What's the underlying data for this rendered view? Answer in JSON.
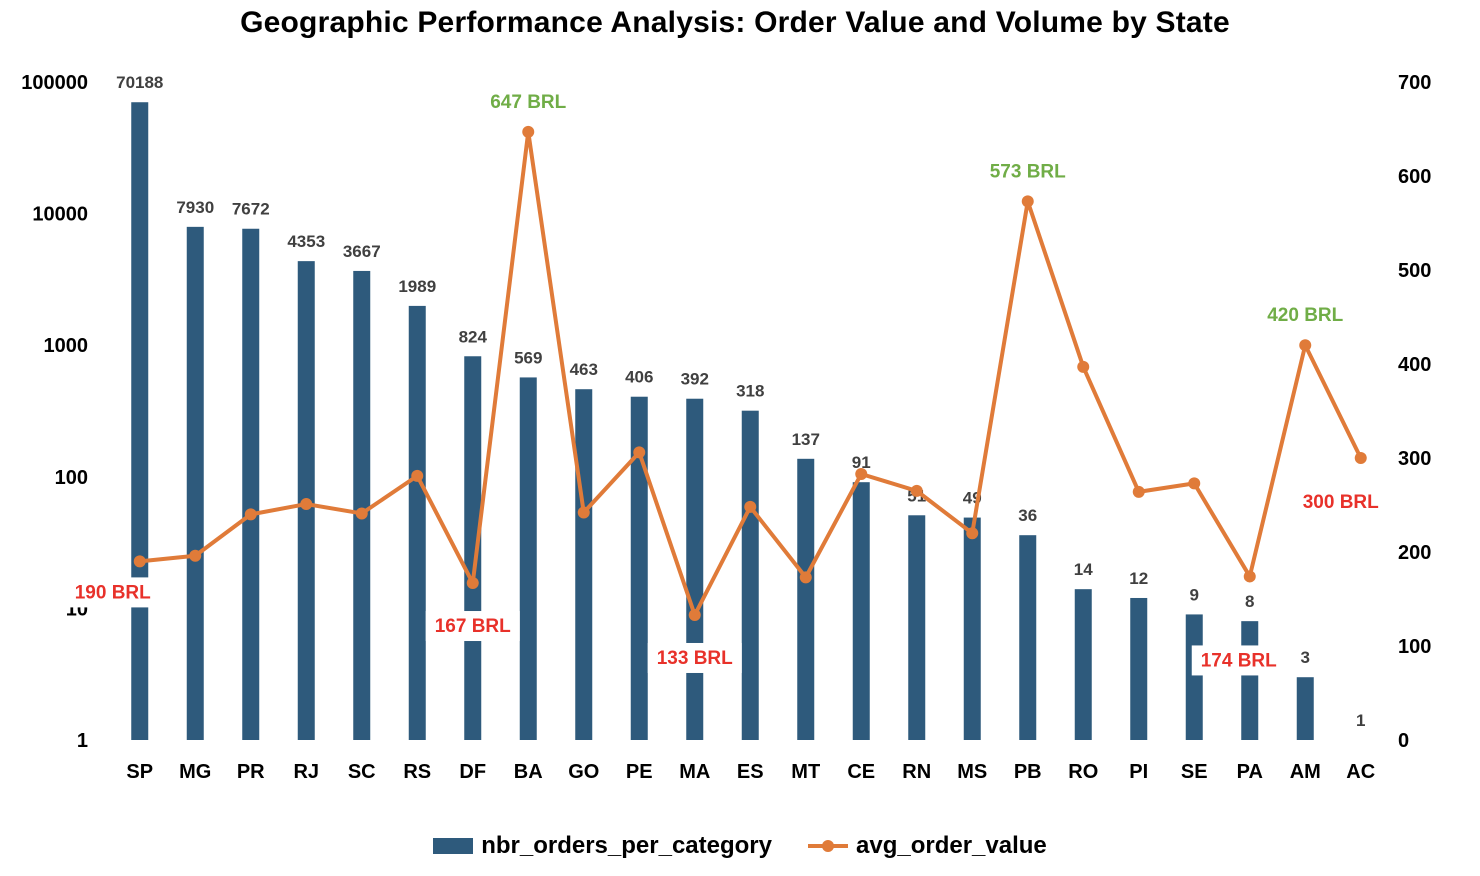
{
  "title": "Geographic Performance Analysis: Order Value and Volume by State",
  "colors": {
    "bar": "#2E5A7C",
    "line": "#E07B39",
    "high_label": "#70AD47",
    "low_label": "#E8312A"
  },
  "legend": {
    "bar_label": "nbr_orders_per_category",
    "line_label": "avg_order_value"
  },
  "chart_data": {
    "type": "bar",
    "title": "Geographic Performance Analysis: Order Value and Volume by State",
    "categories": [
      "SP",
      "MG",
      "PR",
      "RJ",
      "SC",
      "RS",
      "DF",
      "BA",
      "GO",
      "PE",
      "MA",
      "ES",
      "MT",
      "CE",
      "RN",
      "MS",
      "PB",
      "RO",
      "PI",
      "SE",
      "PA",
      "AM",
      "AC"
    ],
    "series": [
      {
        "name": "nbr_orders_per_category",
        "type": "bar",
        "axis": "left",
        "values": [
          70188,
          7930,
          7672,
          4353,
          3667,
          1989,
          824,
          569,
          463,
          406,
          392,
          318,
          137,
          91,
          51,
          49,
          36,
          14,
          12,
          9,
          8,
          3,
          1
        ]
      },
      {
        "name": "avg_order_value",
        "type": "line",
        "axis": "right",
        "values": [
          190,
          196,
          240,
          251,
          241,
          281,
          167,
          647,
          242,
          306,
          133,
          248,
          173,
          283,
          265,
          220,
          573,
          397,
          264,
          273,
          174,
          420,
          300
        ]
      }
    ],
    "left_axis": {
      "scale": "log",
      "ticks": [
        "1",
        "10",
        "100",
        "1000",
        "10000",
        "100000"
      ],
      "ylim": [
        1,
        100000
      ]
    },
    "right_axis": {
      "scale": "linear",
      "ticks": [
        "0",
        "100",
        "200",
        "300",
        "400",
        "500",
        "600",
        "700"
      ],
      "ylim": [
        0,
        700
      ]
    },
    "annotations": [
      {
        "category": "SP",
        "text": "190 BRL",
        "kind": "low"
      },
      {
        "category": "DF",
        "text": "167 BRL",
        "kind": "low"
      },
      {
        "category": "BA",
        "text": "647 BRL",
        "kind": "high"
      },
      {
        "category": "MA",
        "text": "133 BRL",
        "kind": "low"
      },
      {
        "category": "PB",
        "text": "573 BRL",
        "kind": "high"
      },
      {
        "category": "PA",
        "text": "174 BRL",
        "kind": "low"
      },
      {
        "category": "AM",
        "text": "420 BRL",
        "kind": "high"
      },
      {
        "category": "AC",
        "text": "300 BRL",
        "kind": "low"
      }
    ],
    "legend_position": "bottom",
    "grid": false
  }
}
